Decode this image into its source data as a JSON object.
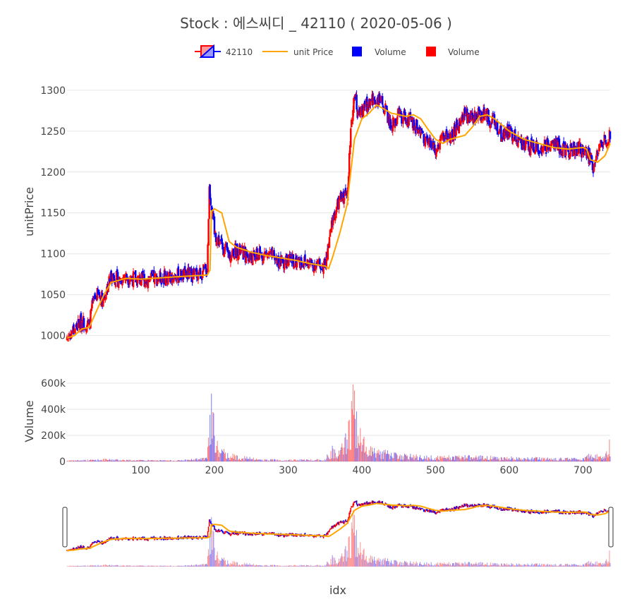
{
  "chart_data": {
    "type": "candlestick",
    "title": "Stock :  에스씨디 _ 42110 ( 2020-05-06 )",
    "legend": {
      "placement": "top-center",
      "entries": [
        {
          "label": "42110",
          "kind": "candle",
          "color": "#ff0000",
          "color2": "#0000ff"
        },
        {
          "label": "unit Price",
          "kind": "line",
          "color": "#ffa500"
        },
        {
          "label": "Volume",
          "kind": "square",
          "color": "#0000ff"
        },
        {
          "label": "Volume",
          "kind": "square",
          "color": "#ff0000"
        }
      ]
    },
    "price_axis": {
      "title": "unitPrice",
      "range": [
        985,
        1318
      ],
      "ticks": [
        "1000",
        "1050",
        "1100",
        "1150",
        "1200",
        "1250",
        "1300"
      ],
      "tick_values": [
        1000,
        1050,
        1100,
        1150,
        1200,
        1250,
        1300
      ]
    },
    "volume_axis": {
      "title": "Volume",
      "range": [
        0,
        600000
      ],
      "ticks": [
        "0",
        "200k",
        "400k",
        "600k"
      ],
      "tick_values": [
        0,
        200000,
        400000,
        600000
      ]
    },
    "x_axis": {
      "title": "idx",
      "range": [
        0,
        737
      ],
      "ticks": [
        "100",
        "200",
        "300",
        "400",
        "500",
        "600",
        "700"
      ],
      "tick_values": [
        100,
        200,
        300,
        400,
        500,
        600,
        700
      ]
    },
    "colors": {
      "up": "#ff0000",
      "down": "#0000ff",
      "ma": "#ffa500",
      "volume_up": "#ff0000",
      "volume_down": "#0000ff"
    },
    "price_keypoints": {
      "idx": [
        0,
        10,
        20,
        30,
        35,
        40,
        50,
        60,
        70,
        80,
        100,
        120,
        150,
        180,
        190,
        193,
        196,
        200,
        210,
        220,
        230,
        250,
        270,
        290,
        310,
        330,
        350,
        355,
        360,
        370,
        380,
        385,
        390,
        395,
        400,
        410,
        420,
        430,
        440,
        450,
        460,
        470,
        480,
        490,
        500,
        510,
        520,
        530,
        540,
        550,
        560,
        570,
        580,
        590,
        600,
        610,
        620,
        630,
        640,
        650,
        660,
        670,
        680,
        690,
        700,
        710,
        715,
        720,
        725,
        730,
        737
      ],
      "close": [
        998,
        1008,
        1018,
        1012,
        1040,
        1050,
        1045,
        1075,
        1068,
        1072,
        1068,
        1070,
        1073,
        1076,
        1080,
        1180,
        1160,
        1125,
        1110,
        1098,
        1105,
        1095,
        1100,
        1090,
        1092,
        1088,
        1085,
        1110,
        1140,
        1165,
        1175,
        1245,
        1300,
        1270,
        1275,
        1285,
        1290,
        1280,
        1255,
        1270,
        1265,
        1260,
        1250,
        1235,
        1230,
        1245,
        1240,
        1255,
        1270,
        1265,
        1272,
        1268,
        1260,
        1245,
        1250,
        1240,
        1235,
        1230,
        1228,
        1232,
        1235,
        1230,
        1225,
        1230,
        1225,
        1218,
        1205,
        1225,
        1235,
        1240,
        1248
      ]
    },
    "ma_keypoints": {
      "idx": [
        0,
        10,
        20,
        30,
        40,
        50,
        60,
        80,
        100,
        150,
        190,
        194,
        196,
        200,
        210,
        220,
        230,
        250,
        270,
        290,
        310,
        330,
        350,
        355,
        360,
        370,
        380,
        385,
        390,
        400,
        410,
        420,
        440,
        460,
        470,
        480,
        490,
        500,
        510,
        520,
        540,
        550,
        560,
        570,
        580,
        600,
        620,
        640,
        660,
        680,
        700,
        705,
        710,
        720,
        730,
        737
      ],
      "value": [
        997,
        1000,
        1008,
        1010,
        1030,
        1050,
        1065,
        1070,
        1069,
        1072,
        1074,
        1080,
        1152,
        1155,
        1150,
        1115,
        1108,
        1102,
        1098,
        1095,
        1092,
        1088,
        1085,
        1082,
        1095,
        1125,
        1160,
        1200,
        1240,
        1265,
        1272,
        1282,
        1272,
        1268,
        1270,
        1265,
        1252,
        1240,
        1235,
        1240,
        1245,
        1255,
        1268,
        1270,
        1265,
        1250,
        1240,
        1235,
        1230,
        1228,
        1230,
        1228,
        1215,
        1212,
        1220,
        1235
      ]
    },
    "volume_keypoints": {
      "idx": [
        0,
        50,
        100,
        150,
        190,
        196,
        200,
        205,
        220,
        260,
        300,
        350,
        360,
        370,
        380,
        385,
        388,
        395,
        400,
        420,
        450,
        500,
        550,
        600,
        650,
        700,
        710,
        730,
        737
      ],
      "value": [
        8000,
        20000,
        12000,
        10000,
        30000,
        520000,
        280000,
        120000,
        60000,
        20000,
        15000,
        20000,
        120000,
        80000,
        250000,
        400000,
        590000,
        300000,
        200000,
        100000,
        60000,
        40000,
        50000,
        35000,
        30000,
        25000,
        70000,
        40000,
        190000
      ]
    }
  }
}
